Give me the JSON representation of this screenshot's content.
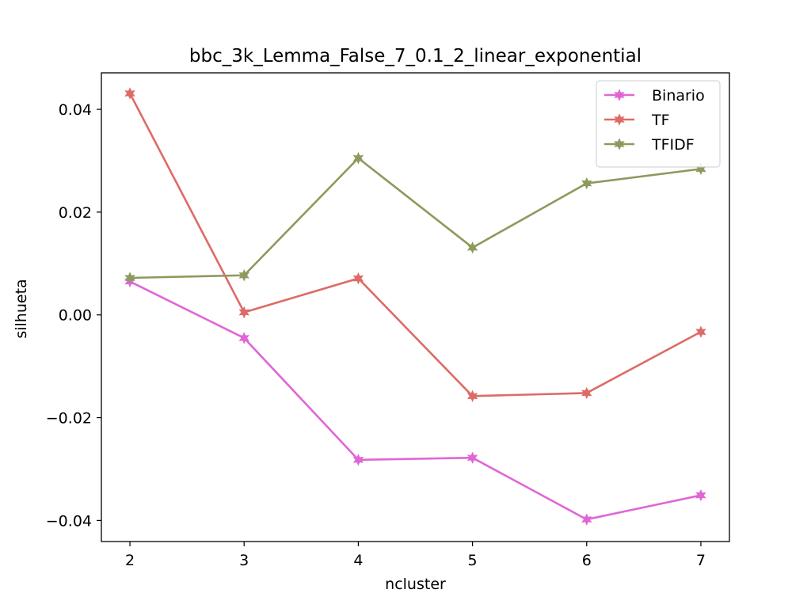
{
  "chart_data": {
    "type": "line",
    "title": "bbc_3k_Lemma_False_7_0.1_2_linear_exponential",
    "xlabel": "ncluster",
    "ylabel": "silhueta",
    "x": [
      2,
      3,
      4,
      5,
      6,
      7
    ],
    "xlim": [
      1.75,
      7.25
    ],
    "ylim": [
      -0.0441,
      0.0471
    ],
    "x_ticks": [
      2,
      3,
      4,
      5,
      6,
      7
    ],
    "x_tick_labels": [
      "2",
      "3",
      "4",
      "5",
      "6",
      "7"
    ],
    "y_ticks": [
      -0.04,
      -0.02,
      0.0,
      0.02,
      0.04
    ],
    "y_tick_labels": [
      "−0.04",
      "−0.02",
      "0.00",
      "0.02",
      "0.04"
    ],
    "grid": false,
    "legend_position": "top-right",
    "marker": "star",
    "series": [
      {
        "name": "Binario",
        "color": "#e066d6",
        "values": [
          0.0065,
          -0.0045,
          -0.0282,
          -0.0278,
          -0.0398,
          -0.0351
        ]
      },
      {
        "name": "TF",
        "color": "#dd6b66",
        "values": [
          0.0431,
          0.0005,
          0.0071,
          -0.0158,
          -0.0152,
          -0.0033
        ]
      },
      {
        "name": "TFIDF",
        "color": "#8c9a5d",
        "values": [
          0.0072,
          0.0077,
          0.0305,
          0.0131,
          0.0256,
          0.0284
        ]
      }
    ]
  }
}
